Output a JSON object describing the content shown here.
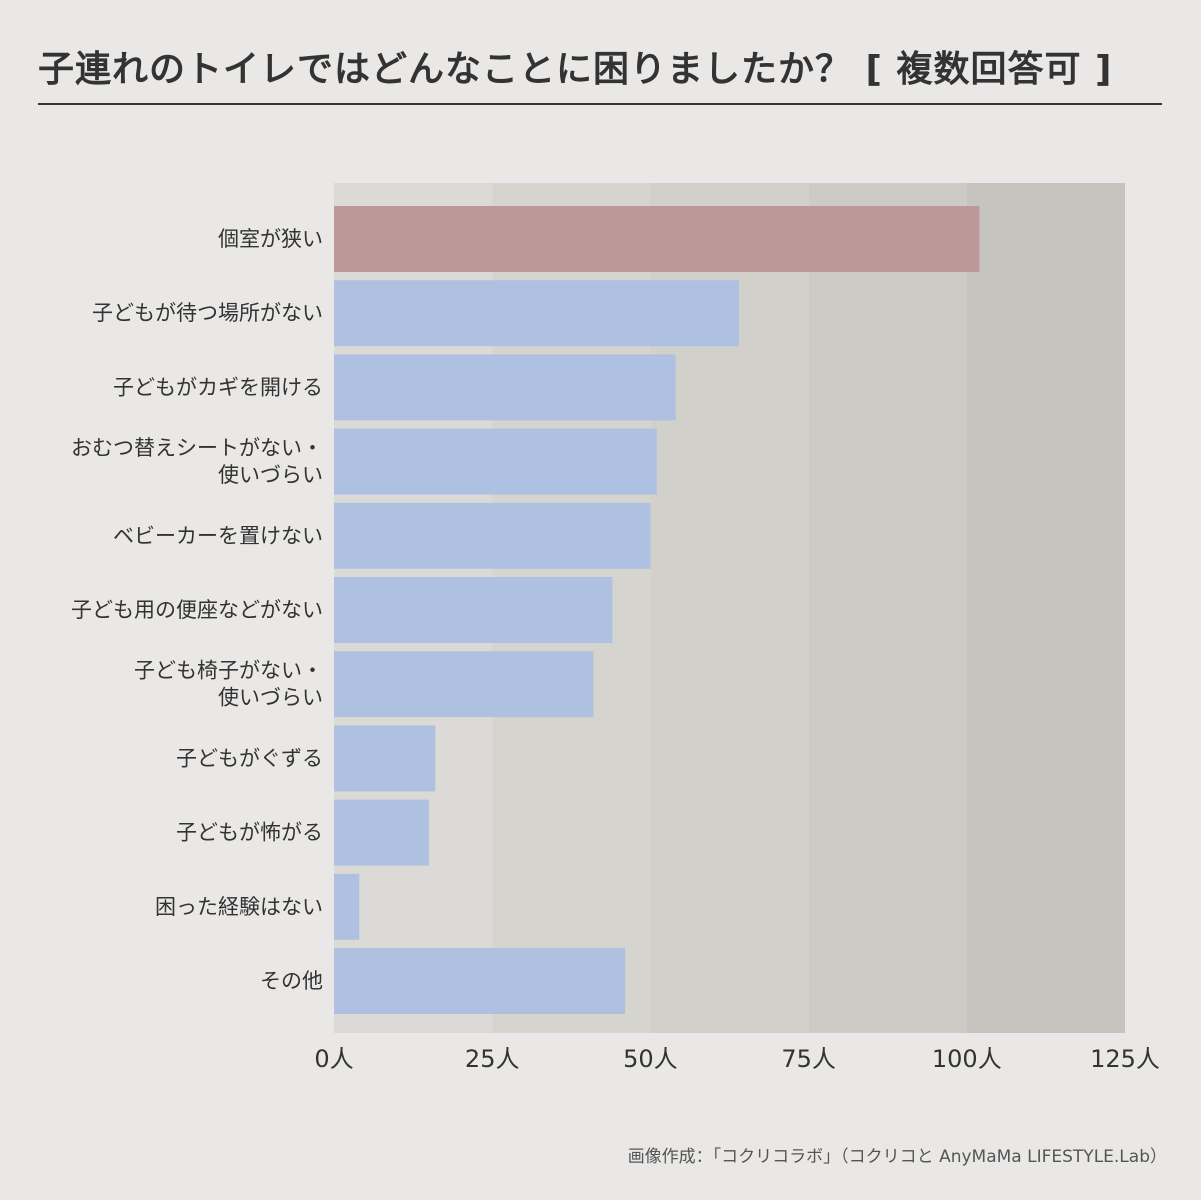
{
  "title": "子連れのトイレではどんなことに困りましたか？ [ 複数回答可 ]",
  "credit": "画像作成：「コクリコラボ」（コクリコと AnyMaMa LIFESTYLE.Lab）",
  "colors": {
    "highlight_bar": "#bc9898",
    "bar": "#afc1e0",
    "band_1": "#dcdad6",
    "band_2": "#d6d4cf",
    "band_3": "#d1d0cb",
    "band_4": "#cccbc6",
    "band_5": "#c5c4bf"
  },
  "chart_data": {
    "type": "bar",
    "orientation": "horizontal",
    "categories": [
      [
        "個室が狭い"
      ],
      [
        "子どもが待つ場所がない"
      ],
      [
        "子どもがカギを開ける"
      ],
      [
        "おむつ替えシートがない・",
        "使いづらい"
      ],
      [
        "ベビーカーを置けない"
      ],
      [
        "子ども用の便座などがない"
      ],
      [
        "子ども椅子がない・",
        "使いづらい"
      ],
      [
        "子どもがぐずる"
      ],
      [
        "子どもが怖がる"
      ],
      [
        "困った経験はない"
      ],
      [
        "その他"
      ]
    ],
    "values": [
      102,
      64,
      54,
      51,
      50,
      44,
      41,
      16,
      15,
      4,
      46
    ],
    "highlight_index": 0,
    "xlim": [
      0,
      125
    ],
    "ticks": [
      0,
      25,
      50,
      75,
      100,
      125
    ],
    "tick_labels": [
      "0人",
      "25人",
      "50人",
      "75人",
      "100人",
      "125人"
    ],
    "grid": "alternating vertical bands"
  }
}
